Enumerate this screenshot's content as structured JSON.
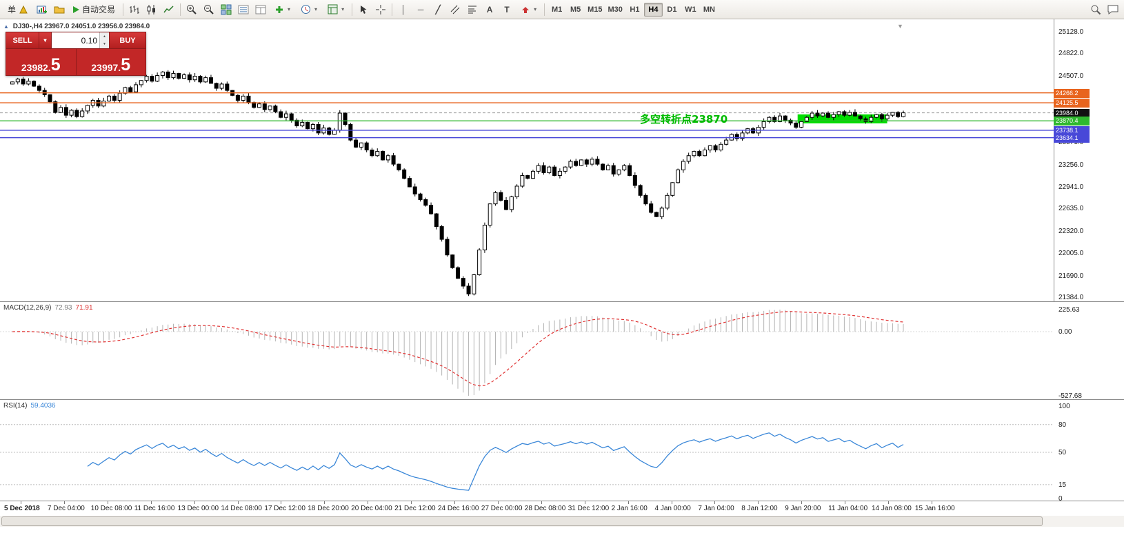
{
  "app": {
    "title_fragment": "单",
    "auto_trading": "自动交易"
  },
  "icons": {
    "dropdown": "▾",
    "triangle_up": "▲",
    "triangle_down": "▼",
    "vline": "│",
    "hline": "─",
    "trendline": "╱",
    "text": "A",
    "label": "T"
  },
  "toolbar": {
    "timeframes": {
      "labels": [
        "M1",
        "M5",
        "M15",
        "M30",
        "H1",
        "H4",
        "D1",
        "W1",
        "MN"
      ],
      "active": "H4"
    }
  },
  "trade_panel": {
    "sell": "SELL",
    "buy": "BUY",
    "lot": "0.10",
    "sell_price_small": "23982.",
    "sell_price_big": "5",
    "buy_price_small": "23997.",
    "buy_price_big": "5"
  },
  "chart_header": {
    "symbol": "DJ30-,H4",
    "ohlc": "23967.0 24051.0 23956.0 23984.0"
  },
  "annotation": {
    "text": "多空转折点23870"
  },
  "price_axis": {
    "min": 21384,
    "max": 25128,
    "labels": [
      "25128.0",
      "24822.0",
      "24507.0",
      "23571.0",
      "23256.0",
      "22941.0",
      "22635.0",
      "22320.0",
      "22005.0",
      "21690.0",
      "21384.0"
    ]
  },
  "tags": [
    {
      "label": "24266.2",
      "price": 24266.2,
      "color": "#e8641e"
    },
    {
      "label": "24125.5",
      "price": 24125.5,
      "color": "#e8641e"
    },
    {
      "label": "23984.0",
      "price": 23984.0,
      "color": "#111111"
    },
    {
      "label": "23870.4",
      "price": 23870.4,
      "color": "#2eb82e"
    },
    {
      "label": "23738.1",
      "price": 23738.1,
      "color": "#4848d8"
    },
    {
      "label": "23634.1",
      "price": 23634.1,
      "color": "#4848d8"
    }
  ],
  "chart_data": {
    "type": "candlestick",
    "symbol": "DJ30-",
    "timeframe": "H4",
    "title": "DJ30-,H4 23967.0 24051.0 23956.0 23984.0",
    "y_range": [
      21384,
      25128
    ],
    "open_first": 24390,
    "closes": [
      24420,
      24460,
      24390,
      24430,
      24360,
      24300,
      24240,
      24140,
      23990,
      24060,
      23950,
      24020,
      23930,
      24010,
      24090,
      24160,
      24080,
      24150,
      24220,
      24160,
      24260,
      24340,
      24280,
      24380,
      24440,
      24500,
      24430,
      24510,
      24560,
      24480,
      24540,
      24470,
      24520,
      24450,
      24500,
      24420,
      24480,
      24400,
      24330,
      24390,
      24300,
      24230,
      24160,
      24220,
      24130,
      24060,
      24110,
      24030,
      24080,
      24000,
      23920,
      23970,
      23880,
      23800,
      23850,
      23760,
      23820,
      23700,
      23770,
      23680,
      23740,
      23980,
      23820,
      23600,
      23500,
      23560,
      23460,
      23380,
      23440,
      23320,
      23380,
      23260,
      23180,
      23060,
      22940,
      22840,
      22760,
      22680,
      22560,
      22380,
      22200,
      21980,
      21800,
      21650,
      21540,
      21430,
      21700,
      22050,
      22400,
      22700,
      22860,
      22750,
      22620,
      22800,
      22950,
      23100,
      23060,
      23160,
      23240,
      23140,
      23220,
      23100,
      23160,
      23220,
      23300,
      23240,
      23320,
      23260,
      23330,
      23260,
      23180,
      23240,
      23120,
      23180,
      23240,
      23100,
      22960,
      22820,
      22700,
      22580,
      22520,
      22640,
      22820,
      23000,
      23180,
      23300,
      23380,
      23440,
      23380,
      23460,
      23520,
      23460,
      23540,
      23600,
      23680,
      23620,
      23700,
      23760,
      23700,
      23780,
      23860,
      23920,
      23860,
      23940,
      23880,
      23840,
      23780,
      23860,
      23920,
      23980,
      23940,
      23980,
      23920,
      23960,
      24000,
      23950,
      23990,
      23940,
      23900,
      23860,
      23920,
      23960,
      23900,
      23950,
      23990,
      23930,
      23984
    ],
    "hlines": [
      {
        "price": 24266.2,
        "color": "#e8641e"
      },
      {
        "price": 24125.5,
        "color": "#e8641e"
      },
      {
        "price": 23870.4,
        "color": "#2eb82e"
      },
      {
        "price": 23738.1,
        "color": "#4848d8"
      },
      {
        "price": 23634.1,
        "color": "#4848d8"
      }
    ],
    "bid_line": {
      "price": 23984.0
    },
    "highlight_box": {
      "x_frac_start": 0.757,
      "x_frac_end": 0.842,
      "price_top": 23962,
      "price_bottom": 23836,
      "color": "#00dd00"
    },
    "x_labels": [
      "5 Dec 2018",
      "7 Dec 04:00",
      "10 Dec 08:00",
      "11 Dec 16:00",
      "13 Dec 00:00",
      "14 Dec 08:00",
      "17 Dec 12:00",
      "18 Dec 20:00",
      "20 Dec 04:00",
      "21 Dec 12:00",
      "24 Dec 16:00",
      "27 Dec 00:00",
      "28 Dec 08:00",
      "31 Dec 12:00",
      "2 Jan 16:00",
      "4 Jan 00:00",
      "7 Jan 04:00",
      "8 Jan 12:00",
      "9 Jan 20:00",
      "11 Jan 04:00",
      "14 Jan 08:00",
      "15 Jan 16:00"
    ],
    "indicators": [
      {
        "name": "MACD",
        "label": "MACD(12,26,9)",
        "value_main": "72.93",
        "value_signal": "71.91",
        "scale": [
          "225.63",
          "0.00",
          "-527.68"
        ]
      },
      {
        "name": "RSI",
        "label": "RSI(14)",
        "value": "59.4036",
        "scale": [
          "100",
          "80",
          "50",
          "15",
          "0"
        ],
        "levels": [
          80,
          50,
          15
        ]
      }
    ]
  }
}
